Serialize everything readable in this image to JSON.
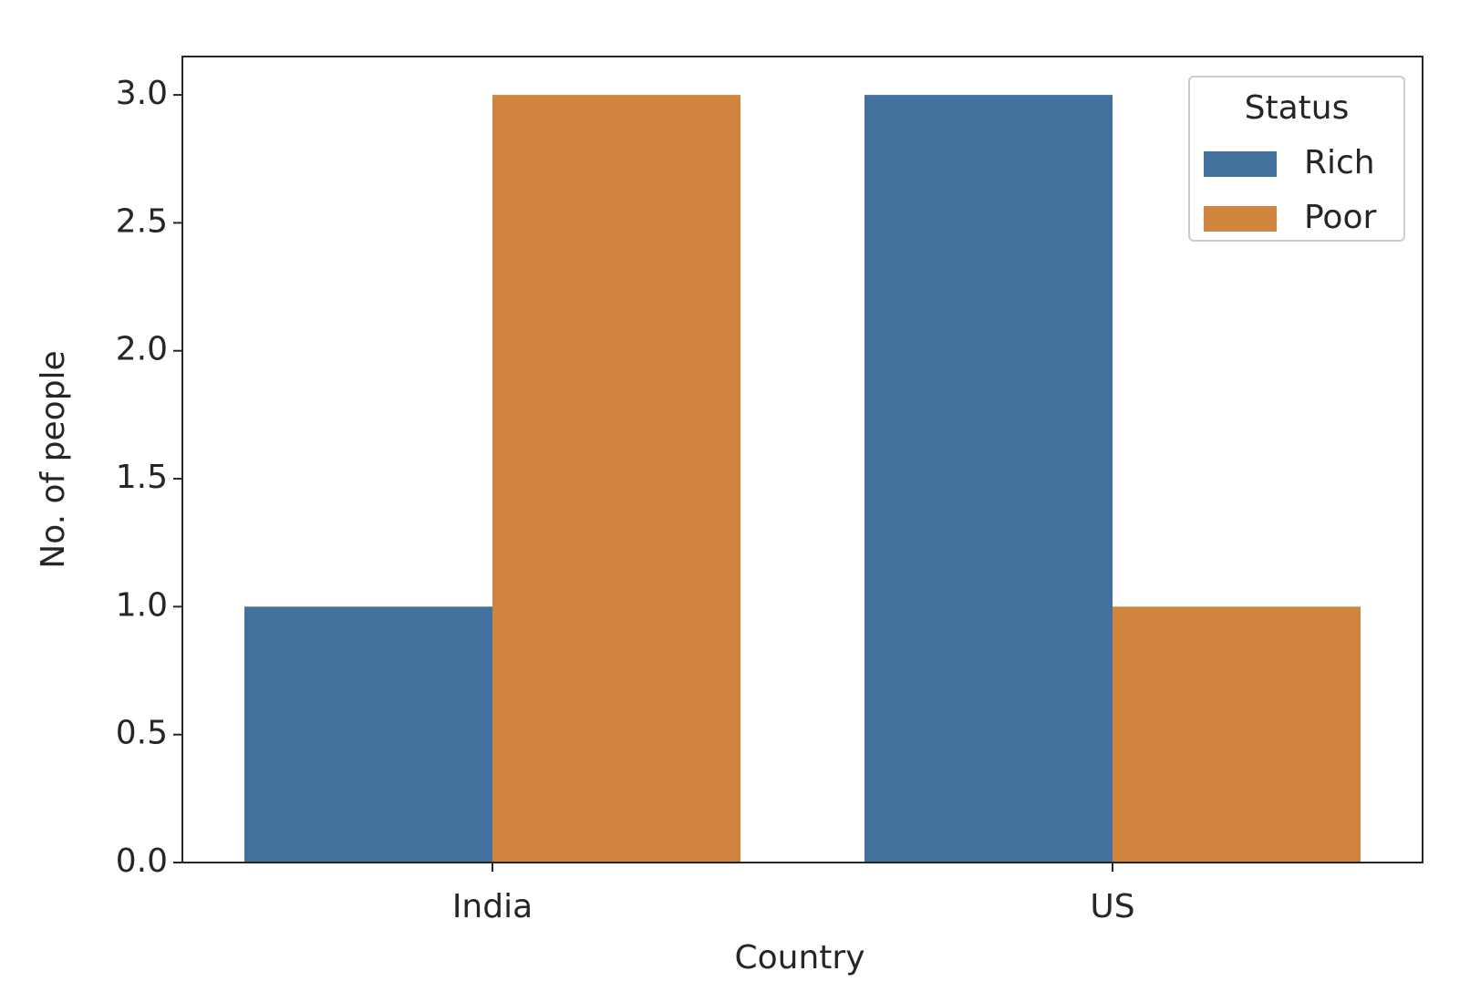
{
  "chart_data": {
    "type": "grouped_bar",
    "x_label": "Country",
    "y_label": "No. of people",
    "categories": [
      "India",
      "US"
    ],
    "series": [
      {
        "name": "Rich",
        "color": "#44709e",
        "values": [
          1,
          3
        ]
      },
      {
        "name": "Poor",
        "color": "#d0843e",
        "values": [
          3,
          1
        ]
      }
    ],
    "ylim": [
      0,
      3.15
    ],
    "yticks": [
      {
        "value": 0,
        "label": "0.0"
      },
      0.5,
      {
        "value": 1,
        "label": "1.0"
      },
      1.5,
      {
        "value": 2,
        "label": "2.0"
      },
      2.5,
      {
        "value": 3,
        "label": "3.0"
      }
    ],
    "legend_title": "Status",
    "legend_position": "upper right",
    "grid": false
  }
}
